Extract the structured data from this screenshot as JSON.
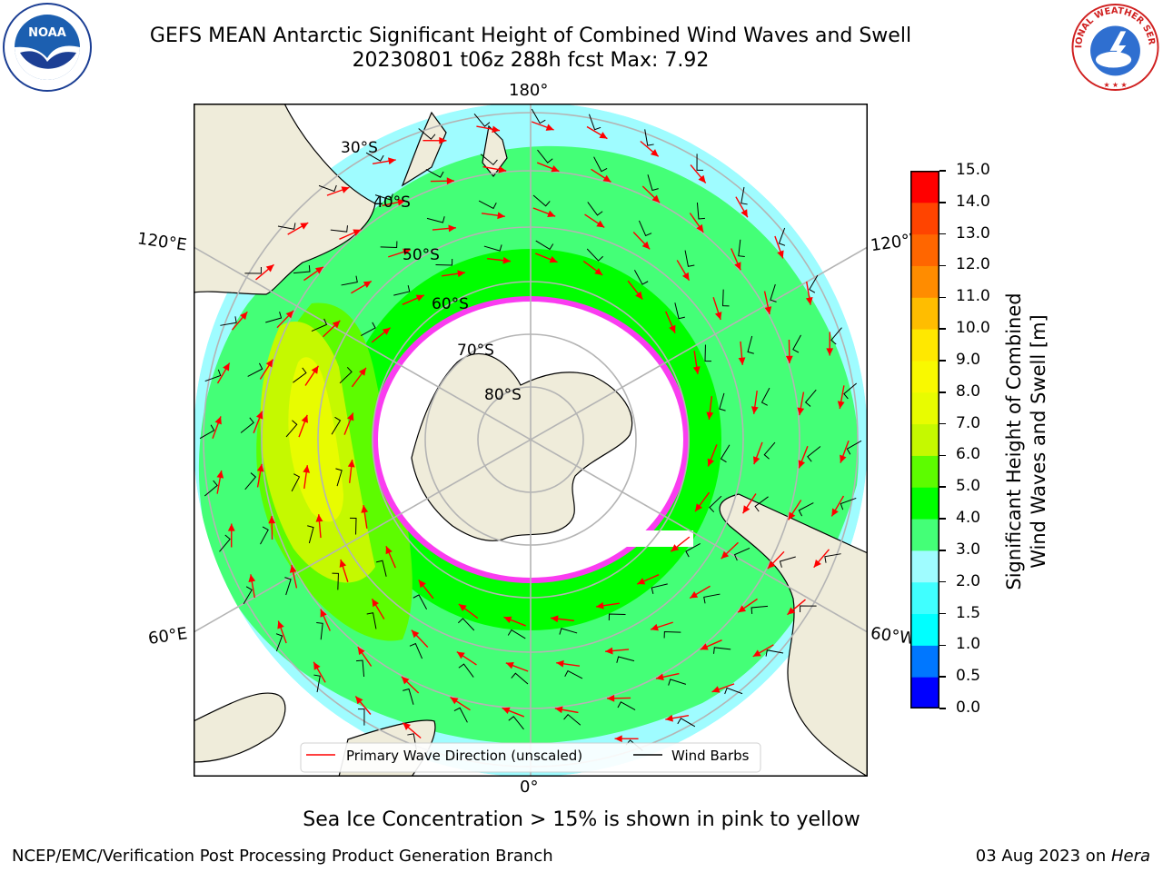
{
  "title": {
    "line1": "GEFS MEAN Antarctic Significant Height of Combined Wind Waves and Swell",
    "line2": "20230801 t06z 288h fcst   Max: 7.92"
  },
  "map": {
    "projection": "south polar stereographic",
    "longitude_labels": {
      "top": "180°",
      "bottom": "0°",
      "upper_left": "120°E",
      "upper_right": "120°W",
      "lower_left": "60°E",
      "lower_right": "60°W"
    },
    "latitude_labels": [
      "30°S",
      "40°S",
      "50°S",
      "60°S",
      "70°S",
      "80°S"
    ],
    "legend": {
      "wave_label": "Primary Wave Direction (unscaled)",
      "wind_label": "Wind Barbs",
      "wave_color": "#ff0000",
      "wind_color": "#000000"
    },
    "colors": {
      "land": "#efecda",
      "sea_ice": "#ffffff",
      "grid": "#b4b4b4"
    },
    "logos": {
      "noaa": "NOAA",
      "nws": "NATIONAL WEATHER SERVICE"
    }
  },
  "colorbar": {
    "label_line1": "Significant Height of Combined",
    "label_line2": "Wind Waves and Swell [m]",
    "ticks": [
      "0.0",
      "0.5",
      "1.0",
      "1.5",
      "2.0",
      "3.0",
      "4.0",
      "5.0",
      "6.0",
      "7.0",
      "8.0",
      "9.0",
      "10.0",
      "11.0",
      "12.0",
      "13.0",
      "14.0",
      "15.0"
    ],
    "colors": [
      "#0000ff",
      "#0077ff",
      "#00ffff",
      "#40ffff",
      "#9ffcff",
      "#44ff77",
      "#00ff00",
      "#5dfc00",
      "#c5f900",
      "#e8fc00",
      "#f9f900",
      "#ffe800",
      "#ffbd00",
      "#ff8c00",
      "#ff6600",
      "#ff4400",
      "#ff0000"
    ]
  },
  "footnote": "Sea Ice Concentration > 15% is shown in pink to yellow",
  "credit": "NCEP/EMC/Verification Post Processing Product Generation Branch",
  "date": {
    "prefix": "03 Aug 2023 on ",
    "machine": "Hera"
  }
}
